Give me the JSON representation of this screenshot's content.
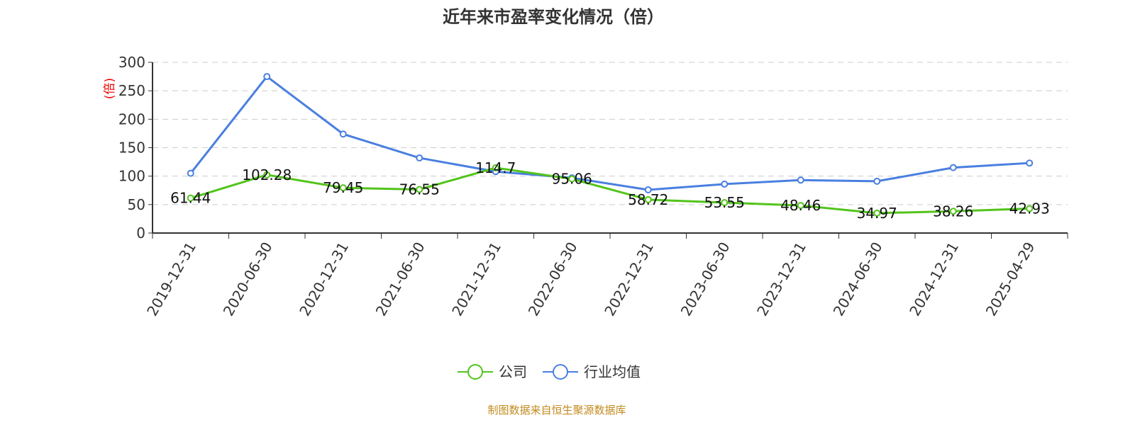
{
  "chart_data": {
    "type": "line",
    "title": "近年来市盈率变化情况（倍）",
    "ylabel": "(倍)",
    "ylim": [
      0,
      300
    ],
    "yticks": [
      0,
      50,
      100,
      150,
      200,
      250,
      300
    ],
    "grid": true,
    "legend_placement": "bottom",
    "categories": [
      "2019-12-31",
      "2020-06-30",
      "2020-12-31",
      "2021-06-30",
      "2021-12-31",
      "2022-06-30",
      "2022-12-31",
      "2023-06-30",
      "2023-12-31",
      "2024-06-30",
      "2024-12-31",
      "2025-04-29"
    ],
    "series": [
      {
        "name": "公司",
        "color": "#52c41a",
        "labels": true,
        "values": [
          61.44,
          102.28,
          79.45,
          76.55,
          114.7,
          95.06,
          58.72,
          53.55,
          48.46,
          34.97,
          38.26,
          42.93
        ]
      },
      {
        "name": "行业均值",
        "color": "#4a7fe0",
        "labels": false,
        "values": [
          105,
          275,
          174,
          132,
          108,
          97,
          76,
          86,
          93,
          91,
          115,
          123
        ]
      }
    ],
    "source": "制图数据来自恒生聚源数据库"
  }
}
